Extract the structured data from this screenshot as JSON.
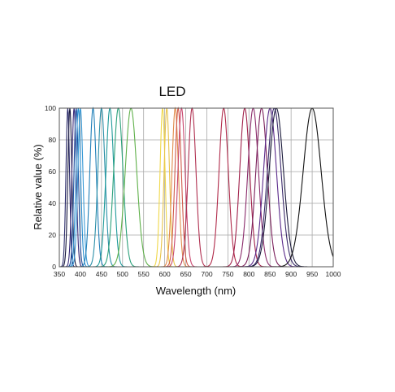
{
  "chart_data": {
    "type": "line",
    "title": "LED",
    "xlabel": "Wavelength (nm)",
    "ylabel": "Relative value (%)",
    "xlim": [
      350,
      1000
    ],
    "ylim": [
      0,
      100
    ],
    "xticks": [
      350,
      400,
      450,
      500,
      550,
      600,
      650,
      700,
      750,
      800,
      850,
      900,
      950,
      1000
    ],
    "yticks": [
      0,
      20,
      40,
      60,
      80,
      100
    ],
    "grid": true,
    "legend": "none",
    "series": [
      {
        "peak": 370,
        "fwhm": 10,
        "color": "#2b2b6b"
      },
      {
        "peak": 375,
        "fwhm": 11,
        "color": "#1a1a40"
      },
      {
        "peak": 385,
        "fwhm": 12,
        "color": "#3a2c7a"
      },
      {
        "peak": 390,
        "fwhm": 12,
        "color": "#1f4f9f"
      },
      {
        "peak": 395,
        "fwhm": 13,
        "color": "#2a8fd0"
      },
      {
        "peak": 400,
        "fwhm": 14,
        "color": "#3a9ad6"
      },
      {
        "peak": 430,
        "fwhm": 18,
        "color": "#1f7fb8"
      },
      {
        "peak": 450,
        "fwhm": 20,
        "color": "#2b8fa8"
      },
      {
        "peak": 470,
        "fwhm": 22,
        "color": "#1f9a9a"
      },
      {
        "peak": 490,
        "fwhm": 26,
        "color": "#2aa07a"
      },
      {
        "peak": 520,
        "fwhm": 32,
        "color": "#5fb04a"
      },
      {
        "peak": 595,
        "fwhm": 14,
        "color": "#f0d84a"
      },
      {
        "peak": 605,
        "fwhm": 15,
        "color": "#e8c44a"
      },
      {
        "peak": 625,
        "fwhm": 18,
        "color": "#e08a4a"
      },
      {
        "peak": 632,
        "fwhm": 18,
        "color": "#d05a4a"
      },
      {
        "peak": 640,
        "fwhm": 20,
        "color": "#c8466e"
      },
      {
        "peak": 665,
        "fwhm": 22,
        "color": "#b03050"
      },
      {
        "peak": 740,
        "fwhm": 26,
        "color": "#b02a4a"
      },
      {
        "peak": 790,
        "fwhm": 28,
        "color": "#a0204a"
      },
      {
        "peak": 810,
        "fwhm": 30,
        "color": "#8a2a6a"
      },
      {
        "peak": 830,
        "fwhm": 32,
        "color": "#7a1f5a"
      },
      {
        "peak": 850,
        "fwhm": 36,
        "color": "#5a2a8a"
      },
      {
        "peak": 860,
        "fwhm": 38,
        "color": "#3a2a6a"
      },
      {
        "peak": 865,
        "fwhm": 40,
        "color": "#1a1a3a"
      },
      {
        "peak": 950,
        "fwhm": 50,
        "color": "#111111"
      }
    ]
  }
}
